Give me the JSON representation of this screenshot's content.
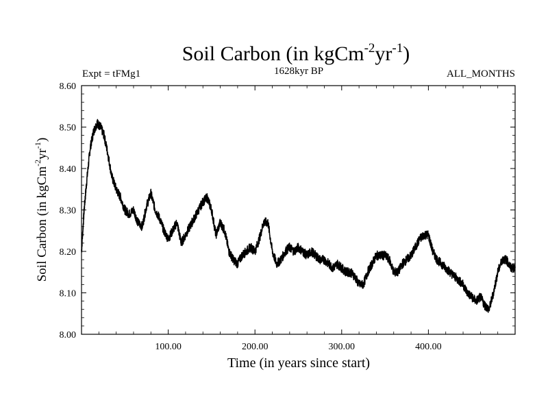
{
  "chart_data": {
    "type": "line",
    "title": "Soil Carbon (in kgCm",
    "title_sup1": "-2",
    "title_mid": "yr",
    "title_sup2": "-1",
    "title_end": ")",
    "left_subtitle": "Expt = tFMg1",
    "center_subtitle": "1628kyr BP",
    "right_subtitle": "ALL_MONTHS",
    "xlabel": "Time (in years since start)",
    "ylabel": "Soil Carbon (in kgCm",
    "ylabel_sup1": "-2",
    "ylabel_mid": "yr",
    "ylabel_sup2": "-1",
    "ylabel_end": ")",
    "xlim": [
      0,
      500
    ],
    "ylim": [
      8.0,
      8.6
    ],
    "xticks": [
      100,
      200,
      300,
      400
    ],
    "xtick_labels": [
      "100.00",
      "200.00",
      "300.00",
      "400.00"
    ],
    "yticks": [
      8.0,
      8.1,
      8.2,
      8.3,
      8.4,
      8.5,
      8.6
    ],
    "ytick_labels": [
      "8.00",
      "8.10",
      "8.20",
      "8.30",
      "8.40",
      "8.50",
      "8.60"
    ],
    "series": [
      {
        "name": "Soil Carbon",
        "color": "#000000",
        "x": [
          0,
          3,
          6,
          10,
          14,
          18,
          22,
          26,
          30,
          35,
          40,
          45,
          50,
          55,
          60,
          65,
          70,
          75,
          80,
          85,
          90,
          95,
          100,
          105,
          110,
          115,
          120,
          125,
          130,
          135,
          140,
          145,
          150,
          155,
          160,
          165,
          170,
          175,
          180,
          185,
          190,
          195,
          200,
          205,
          210,
          215,
          220,
          225,
          230,
          235,
          240,
          245,
          250,
          255,
          260,
          265,
          270,
          275,
          280,
          285,
          290,
          295,
          300,
          305,
          310,
          315,
          320,
          325,
          330,
          335,
          340,
          345,
          350,
          355,
          360,
          365,
          370,
          375,
          380,
          385,
          390,
          395,
          400,
          405,
          410,
          415,
          420,
          425,
          430,
          435,
          440,
          445,
          450,
          455,
          460,
          465,
          470,
          475,
          480,
          485,
          490,
          495,
          500
        ],
        "values": [
          8.2,
          8.3,
          8.37,
          8.45,
          8.49,
          8.51,
          8.5,
          8.48,
          8.44,
          8.38,
          8.35,
          8.33,
          8.3,
          8.29,
          8.3,
          8.27,
          8.26,
          8.31,
          8.34,
          8.3,
          8.28,
          8.25,
          8.23,
          8.25,
          8.27,
          8.22,
          8.24,
          8.26,
          8.28,
          8.3,
          8.32,
          8.33,
          8.3,
          8.24,
          8.27,
          8.25,
          8.2,
          8.18,
          8.17,
          8.19,
          8.2,
          8.21,
          8.2,
          8.23,
          8.27,
          8.27,
          8.2,
          8.17,
          8.18,
          8.2,
          8.21,
          8.2,
          8.21,
          8.2,
          8.19,
          8.2,
          8.19,
          8.18,
          8.18,
          8.17,
          8.16,
          8.17,
          8.16,
          8.15,
          8.15,
          8.14,
          8.12,
          8.12,
          8.15,
          8.17,
          8.19,
          8.19,
          8.19,
          8.18,
          8.15,
          8.15,
          8.17,
          8.18,
          8.19,
          8.21,
          8.23,
          8.24,
          8.24,
          8.2,
          8.18,
          8.17,
          8.16,
          8.15,
          8.14,
          8.13,
          8.12,
          8.1,
          8.09,
          8.08,
          8.09,
          8.07,
          8.06,
          8.1,
          8.15,
          8.18,
          8.18,
          8.16,
          8.16
        ]
      }
    ]
  }
}
